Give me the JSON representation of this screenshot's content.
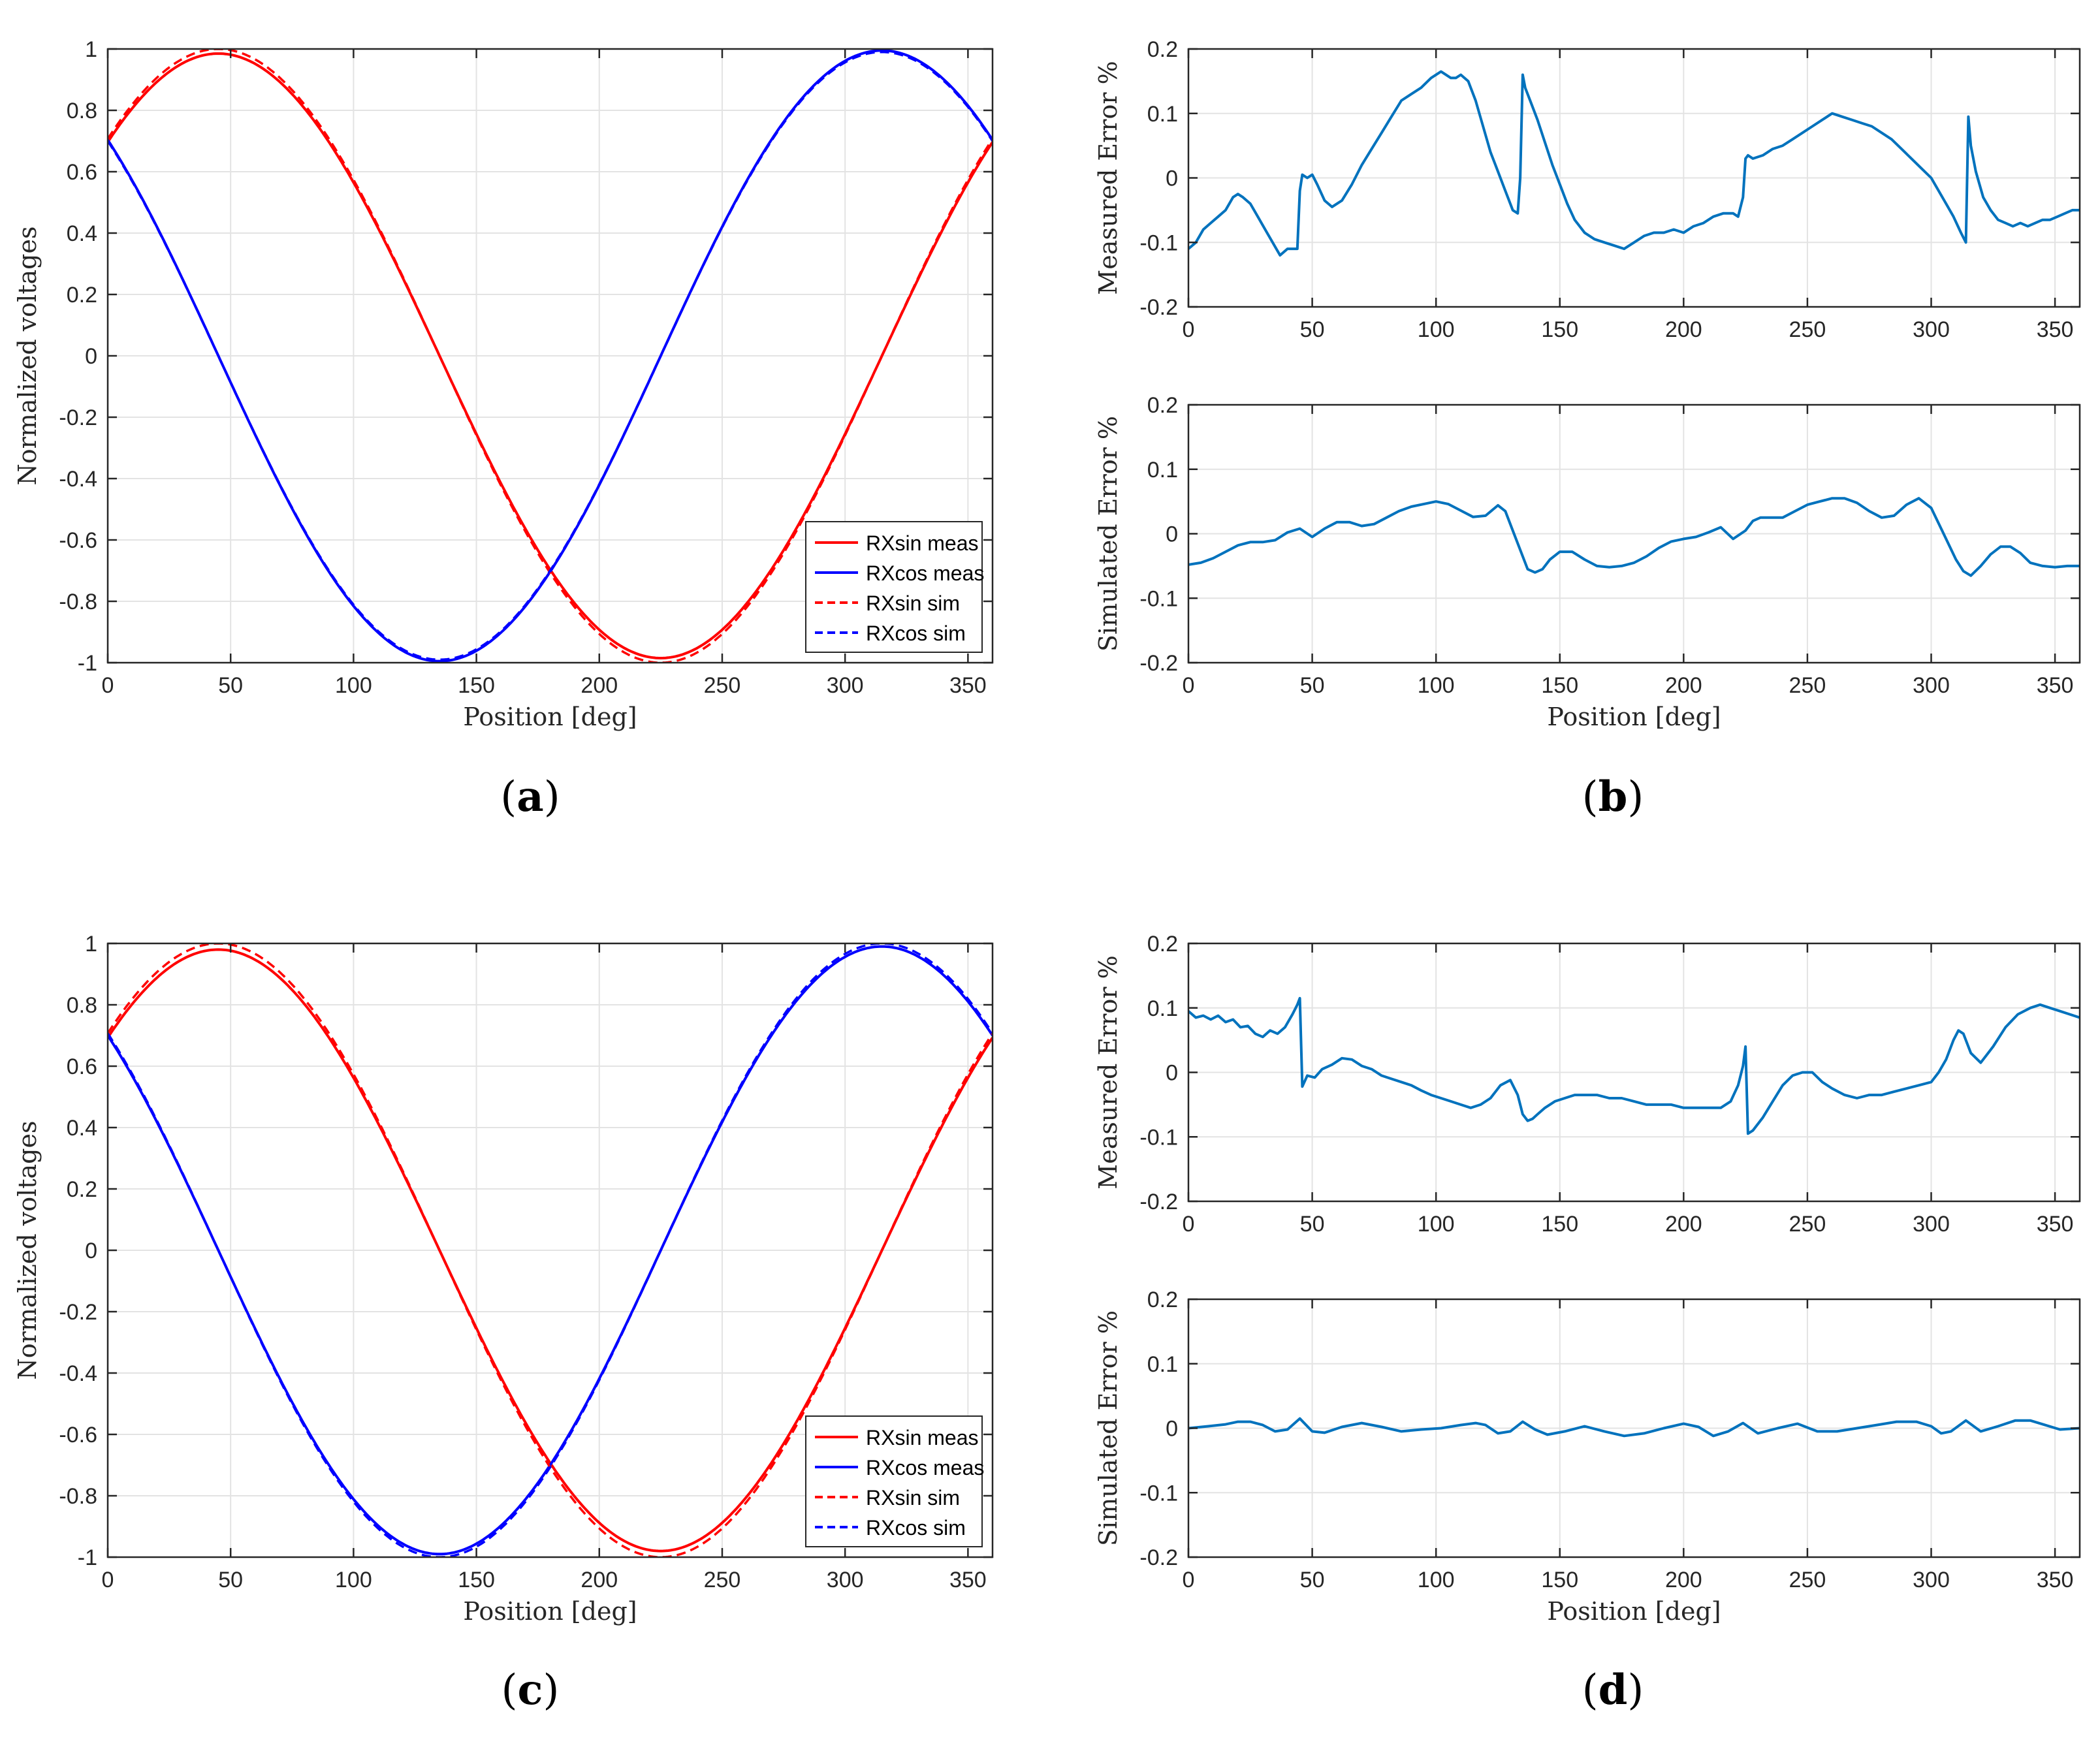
{
  "figure": {
    "panel_labels": [
      {
        "open": "(",
        "letter": "a",
        "close": ")"
      },
      {
        "open": "(",
        "letter": "b",
        "close": ")"
      },
      {
        "open": "(",
        "letter": "c",
        "close": ")"
      },
      {
        "open": "(",
        "letter": "d",
        "close": ")"
      }
    ]
  },
  "chart_data": [
    {
      "id": "a",
      "type": "line",
      "xlabel": "Position [deg]",
      "ylabel": "Normalized voltages",
      "xlim": [
        0,
        360
      ],
      "ylim": [
        -1,
        1
      ],
      "xticks": [
        0,
        50,
        100,
        150,
        200,
        250,
        300,
        350
      ],
      "yticks": [
        -1,
        -0.8,
        -0.6,
        -0.4,
        -0.2,
        0,
        0.2,
        0.4,
        0.6,
        0.8,
        1
      ],
      "ytick_labels": [
        "-1",
        "-0.8",
        "-0.6",
        "-0.4",
        "-0.2",
        "0",
        "0.2",
        "0.4",
        "0.6",
        "0.8",
        "1"
      ],
      "grid": true,
      "legend": "bottom-right",
      "series": [
        {
          "name": "RXsin meas",
          "color": "#ff0000",
          "dash": "solid",
          "fn": "sin",
          "amp": 0.985,
          "phase": 45
        },
        {
          "name": "RXcos meas",
          "color": "#0000ff",
          "dash": "solid",
          "fn": "cos",
          "amp": 0.995,
          "phase": 45
        },
        {
          "name": "RXsin sim",
          "color": "#ff0000",
          "dash": "dashed",
          "fn": "sin",
          "amp": 1.0,
          "phase": 45
        },
        {
          "name": "RXcos sim",
          "color": "#0000ff",
          "dash": "dashed",
          "fn": "cos",
          "amp": 0.99,
          "phase": 45
        }
      ]
    },
    {
      "id": "b-top",
      "type": "line",
      "xlabel": "",
      "ylabel": "Measured Error %",
      "xlim": [
        0,
        360
      ],
      "ylim": [
        -0.2,
        0.2
      ],
      "xticks": [
        0,
        50,
        100,
        150,
        200,
        250,
        300,
        350
      ],
      "yticks": [
        -0.2,
        -0.1,
        0,
        0.1,
        0.2
      ],
      "ytick_labels": [
        "-0.2",
        "-0.1",
        "0",
        "0.1",
        "0.2"
      ],
      "grid": true,
      "series": [
        {
          "name": "Measured Error",
          "color": "#0072bd",
          "dash": "solid",
          "x": [
            0,
            3,
            6,
            9,
            12,
            15,
            18,
            20,
            22,
            25,
            28,
            31,
            34,
            37,
            40,
            42,
            44,
            45,
            46,
            48,
            50,
            52,
            55,
            58,
            62,
            66,
            70,
            74,
            78,
            82,
            86,
            90,
            94,
            98,
            102,
            106,
            108,
            110,
            113,
            116,
            119,
            122,
            125,
            128,
            131,
            133,
            134,
            135,
            136,
            138,
            141,
            144,
            147,
            150,
            153,
            156,
            160,
            164,
            168,
            172,
            176,
            180,
            184,
            188,
            192,
            196,
            200,
            204,
            208,
            212,
            216,
            220,
            222,
            224,
            225,
            226,
            228,
            232,
            236,
            240,
            244,
            248,
            252,
            256,
            260,
            264,
            268,
            272,
            276,
            280,
            284,
            288,
            292,
            296,
            300,
            303,
            306,
            309,
            312,
            314,
            315,
            316,
            318,
            321,
            324,
            327,
            330,
            333,
            336,
            339,
            342,
            345,
            348,
            351,
            354,
            357,
            360
          ],
          "y": [
            -0.11,
            -0.1,
            -0.08,
            -0.07,
            -0.06,
            -0.05,
            -0.03,
            -0.025,
            -0.03,
            -0.04,
            -0.06,
            -0.08,
            -0.1,
            -0.12,
            -0.11,
            -0.11,
            -0.11,
            -0.02,
            0.005,
            0.0,
            0.005,
            -0.01,
            -0.035,
            -0.045,
            -0.035,
            -0.01,
            0.02,
            0.045,
            0.07,
            0.095,
            0.12,
            0.13,
            0.14,
            0.155,
            0.165,
            0.155,
            0.155,
            0.16,
            0.15,
            0.12,
            0.08,
            0.04,
            0.01,
            -0.02,
            -0.05,
            -0.055,
            0.0,
            0.16,
            0.14,
            0.12,
            0.09,
            0.055,
            0.02,
            -0.01,
            -0.04,
            -0.065,
            -0.085,
            -0.095,
            -0.1,
            -0.105,
            -0.11,
            -0.1,
            -0.09,
            -0.085,
            -0.085,
            -0.08,
            -0.085,
            -0.075,
            -0.07,
            -0.06,
            -0.055,
            -0.055,
            -0.06,
            -0.03,
            0.03,
            0.035,
            0.03,
            0.035,
            0.045,
            0.05,
            0.06,
            0.07,
            0.08,
            0.09,
            0.1,
            0.095,
            0.09,
            0.085,
            0.08,
            0.07,
            0.06,
            0.045,
            0.03,
            0.015,
            0.0,
            -0.02,
            -0.04,
            -0.06,
            -0.085,
            -0.1,
            0.095,
            0.05,
            0.01,
            -0.03,
            -0.05,
            -0.065,
            -0.07,
            -0.075,
            -0.07,
            -0.075,
            -0.07,
            -0.065,
            -0.065,
            -0.06,
            -0.055,
            -0.05,
            -0.05
          ]
        }
      ]
    },
    {
      "id": "b-bottom",
      "type": "line",
      "xlabel": "Position [deg]",
      "ylabel": "Simulated Error %",
      "xlim": [
        0,
        360
      ],
      "ylim": [
        -0.2,
        0.2
      ],
      "xticks": [
        0,
        50,
        100,
        150,
        200,
        250,
        300,
        350
      ],
      "yticks": [
        -0.2,
        -0.1,
        0,
        0.1,
        0.2
      ],
      "ytick_labels": [
        "-0.2",
        "-0.1",
        "0",
        "0.1",
        "0.2"
      ],
      "grid": true,
      "series": [
        {
          "name": "Simulated Error",
          "color": "#0072bd",
          "dash": "solid",
          "x": [
            0,
            5,
            10,
            15,
            20,
            25,
            30,
            35,
            40,
            45,
            50,
            55,
            60,
            65,
            70,
            75,
            80,
            85,
            90,
            95,
            100,
            105,
            110,
            115,
            120,
            125,
            128,
            131,
            134,
            137,
            140,
            143,
            146,
            150,
            155,
            160,
            165,
            170,
            175,
            180,
            185,
            190,
            195,
            200,
            205,
            210,
            215,
            220,
            225,
            228,
            231,
            235,
            240,
            245,
            250,
            255,
            260,
            265,
            270,
            275,
            280,
            285,
            290,
            295,
            300,
            305,
            310,
            313,
            316,
            320,
            324,
            328,
            332,
            336,
            340,
            345,
            350,
            355,
            360
          ],
          "y": [
            -0.048,
            -0.045,
            -0.038,
            -0.028,
            -0.018,
            -0.013,
            -0.013,
            -0.01,
            0.002,
            0.008,
            -0.005,
            0.008,
            0.018,
            0.018,
            0.012,
            0.015,
            0.025,
            0.035,
            0.042,
            0.046,
            0.05,
            0.046,
            0.036,
            0.026,
            0.028,
            0.044,
            0.035,
            0.005,
            -0.025,
            -0.055,
            -0.06,
            -0.055,
            -0.04,
            -0.028,
            -0.028,
            -0.04,
            -0.05,
            -0.052,
            -0.05,
            -0.045,
            -0.035,
            -0.022,
            -0.012,
            -0.008,
            -0.005,
            0.002,
            0.01,
            -0.008,
            0.005,
            0.02,
            0.025,
            0.025,
            0.025,
            0.035,
            0.045,
            0.05,
            0.055,
            0.055,
            0.048,
            0.035,
            0.025,
            0.028,
            0.045,
            0.055,
            0.04,
            0.0,
            -0.04,
            -0.058,
            -0.065,
            -0.05,
            -0.032,
            -0.02,
            -0.02,
            -0.03,
            -0.045,
            -0.05,
            -0.052,
            -0.05,
            -0.05
          ]
        }
      ]
    },
    {
      "id": "c",
      "type": "line",
      "xlabel": "Position [deg]",
      "ylabel": "Normalized voltages",
      "xlim": [
        0,
        360
      ],
      "ylim": [
        -1,
        1
      ],
      "xticks": [
        0,
        50,
        100,
        150,
        200,
        250,
        300,
        350
      ],
      "yticks": [
        -1,
        -0.8,
        -0.6,
        -0.4,
        -0.2,
        0,
        0.2,
        0.4,
        0.6,
        0.8,
        1
      ],
      "ytick_labels": [
        "-1",
        "-0.8",
        "-0.6",
        "-0.4",
        "-0.2",
        "0",
        "0.2",
        "0.4",
        "0.6",
        "0.8",
        "1"
      ],
      "grid": true,
      "legend": "bottom-right",
      "series": [
        {
          "name": "RXsin meas",
          "color": "#ff0000",
          "dash": "solid",
          "fn": "sin",
          "amp": 0.98,
          "phase": 45
        },
        {
          "name": "RXcos meas",
          "color": "#0000ff",
          "dash": "solid",
          "fn": "cos",
          "amp": 0.99,
          "phase": 45
        },
        {
          "name": "RXsin sim",
          "color": "#ff0000",
          "dash": "dashed",
          "fn": "sin",
          "amp": 1.0,
          "phase": 45
        },
        {
          "name": "RXcos sim",
          "color": "#0000ff",
          "dash": "dashed",
          "fn": "cos",
          "amp": 1.0,
          "phase": 45
        }
      ]
    },
    {
      "id": "d-top",
      "type": "line",
      "xlabel": "",
      "ylabel": "Measured Error %",
      "xlim": [
        0,
        360
      ],
      "ylim": [
        -0.2,
        0.2
      ],
      "xticks": [
        0,
        50,
        100,
        150,
        200,
        250,
        300,
        350
      ],
      "yticks": [
        -0.2,
        -0.1,
        0,
        0.1,
        0.2
      ],
      "ytick_labels": [
        "-0.2",
        "-0.1",
        "0",
        "0.1",
        "0.2"
      ],
      "grid": true,
      "series": [
        {
          "name": "Measured Error",
          "color": "#0072bd",
          "dash": "solid",
          "x": [
            0,
            3,
            6,
            9,
            12,
            15,
            18,
            21,
            24,
            27,
            30,
            33,
            36,
            39,
            42,
            44,
            45,
            46,
            48,
            51,
            54,
            58,
            62,
            66,
            70,
            74,
            78,
            82,
            86,
            90,
            94,
            98,
            102,
            106,
            110,
            114,
            118,
            122,
            126,
            130,
            133,
            135,
            137,
            139,
            141,
            144,
            148,
            152,
            156,
            160,
            165,
            170,
            175,
            180,
            185,
            190,
            195,
            200,
            205,
            210,
            215,
            219,
            222,
            224,
            225,
            226,
            228,
            232,
            236,
            240,
            244,
            248,
            252,
            256,
            260,
            265,
            270,
            275,
            280,
            285,
            290,
            295,
            300,
            303,
            306,
            309,
            311,
            313,
            316,
            320,
            325,
            330,
            335,
            340,
            344,
            348,
            352,
            356,
            360
          ],
          "y": [
            0.095,
            0.085,
            0.088,
            0.082,
            0.088,
            0.078,
            0.082,
            0.07,
            0.072,
            0.06,
            0.055,
            0.065,
            0.06,
            0.07,
            0.09,
            0.105,
            0.115,
            -0.022,
            -0.005,
            -0.008,
            0.005,
            0.012,
            0.022,
            0.02,
            0.01,
            0.005,
            -0.005,
            -0.01,
            -0.015,
            -0.02,
            -0.028,
            -0.035,
            -0.04,
            -0.045,
            -0.05,
            -0.055,
            -0.05,
            -0.04,
            -0.02,
            -0.012,
            -0.035,
            -0.065,
            -0.075,
            -0.072,
            -0.065,
            -0.055,
            -0.045,
            -0.04,
            -0.035,
            -0.035,
            -0.035,
            -0.04,
            -0.04,
            -0.045,
            -0.05,
            -0.05,
            -0.05,
            -0.055,
            -0.055,
            -0.055,
            -0.055,
            -0.045,
            -0.02,
            0.01,
            0.04,
            -0.095,
            -0.09,
            -0.07,
            -0.045,
            -0.02,
            -0.005,
            0.0,
            0.0,
            -0.015,
            -0.025,
            -0.035,
            -0.04,
            -0.035,
            -0.035,
            -0.03,
            -0.025,
            -0.02,
            -0.015,
            0.0,
            0.02,
            0.05,
            0.065,
            0.06,
            0.03,
            0.015,
            0.04,
            0.07,
            0.09,
            0.1,
            0.105,
            0.1,
            0.095,
            0.09,
            0.085
          ]
        }
      ]
    },
    {
      "id": "d-bottom",
      "type": "line",
      "xlabel": "Position [deg]",
      "ylabel": "Simulated Error %",
      "xlim": [
        0,
        360
      ],
      "ylim": [
        -0.2,
        0.2
      ],
      "xticks": [
        0,
        50,
        100,
        150,
        200,
        250,
        300,
        350
      ],
      "yticks": [
        -0.2,
        -0.1,
        0,
        0.1,
        0.2
      ],
      "ytick_labels": [
        "-0.2",
        "-0.1",
        "0",
        "0.1",
        "0.2"
      ],
      "grid": true,
      "series": [
        {
          "name": "Simulated Error",
          "color": "#0072bd",
          "dash": "solid",
          "x": [
            0,
            8,
            15,
            20,
            25,
            30,
            35,
            40,
            45,
            50,
            55,
            62,
            70,
            78,
            86,
            94,
            102,
            110,
            116,
            120,
            125,
            130,
            135,
            140,
            145,
            152,
            160,
            168,
            176,
            184,
            192,
            200,
            206,
            212,
            218,
            224,
            230,
            238,
            246,
            254,
            262,
            270,
            278,
            286,
            294,
            300,
            304,
            308,
            314,
            320,
            327,
            334,
            340,
            346,
            352,
            360
          ],
          "y": [
            0.0,
            0.003,
            0.006,
            0.01,
            0.01,
            0.005,
            -0.005,
            -0.002,
            0.015,
            -0.005,
            -0.007,
            0.002,
            0.008,
            0.002,
            -0.005,
            -0.002,
            0.0,
            0.005,
            0.008,
            0.005,
            -0.008,
            -0.005,
            0.01,
            -0.002,
            -0.01,
            -0.005,
            0.003,
            -0.005,
            -0.012,
            -0.008,
            0.0,
            0.007,
            0.002,
            -0.012,
            -0.005,
            0.008,
            -0.008,
            0.0,
            0.007,
            -0.005,
            -0.005,
            0.0,
            0.005,
            0.01,
            0.01,
            0.003,
            -0.008,
            -0.005,
            0.012,
            -0.005,
            0.003,
            0.012,
            0.012,
            0.005,
            -0.002,
            0.0
          ]
        }
      ]
    }
  ]
}
